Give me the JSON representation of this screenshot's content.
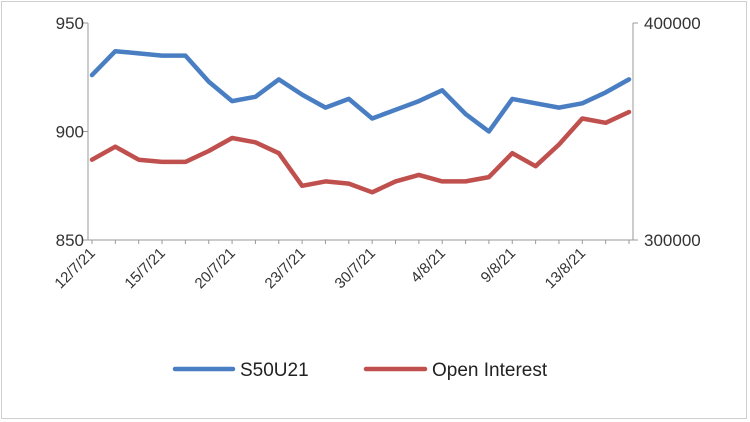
{
  "chart_data": {
    "type": "line",
    "title": "",
    "xlabel": "",
    "ylabel": "",
    "x_tick_labels": [
      "12/7/21",
      "15/7/21",
      "20/7/21",
      "23/7/21",
      "30/7/21",
      "4/8/21",
      "9/8/21",
      "13/8/21"
    ],
    "x_tick_indices": [
      0,
      3,
      6,
      9,
      12,
      15,
      18,
      21
    ],
    "y_left": {
      "ylim": [
        850,
        950
      ],
      "ticks": [
        "850",
        "900",
        "950"
      ]
    },
    "y_right": {
      "ylim": [
        300000,
        400000
      ],
      "ticks": [
        "300000",
        "400000"
      ]
    },
    "grid": false,
    "legend": "bottom",
    "series": [
      {
        "name": "S50U21",
        "axis": "left",
        "color": "#4a7ec3",
        "values": [
          926,
          937,
          936,
          935,
          935,
          923,
          914,
          916,
          924,
          917,
          911,
          915,
          906,
          910,
          914,
          919,
          908,
          900,
          915,
          913,
          911,
          913,
          918,
          924
        ]
      },
      {
        "name": "Open Interest",
        "axis": "right",
        "color": "#c0504d",
        "values": [
          337000,
          343000,
          337000,
          336000,
          336000,
          341000,
          347000,
          345000,
          340000,
          325000,
          327000,
          326000,
          322000,
          327000,
          330000,
          327000,
          327000,
          329000,
          340000,
          334000,
          344000,
          356000,
          354000,
          359000
        ]
      }
    ]
  }
}
